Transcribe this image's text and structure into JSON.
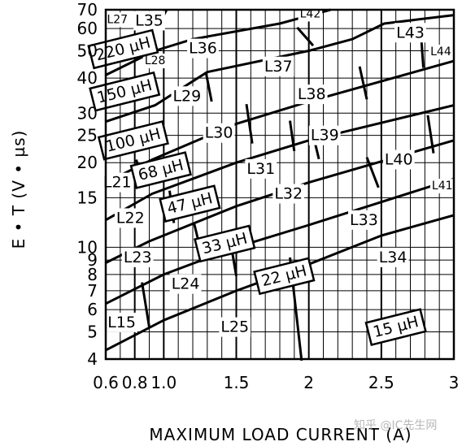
{
  "chart_data": {
    "type": "region-map",
    "xlabel": "MAXIMUM LOAD CURRENT (A)",
    "ylabel": "E • T (V • µs)",
    "x_scale": "linear",
    "y_scale": "log",
    "xlim": [
      0.6,
      3
    ],
    "ylim": [
      4,
      70
    ],
    "grid": true,
    "x_ticks": [
      {
        "value": 0.6,
        "label": "0.6"
      },
      {
        "value": 0.8,
        "label": "0.8"
      },
      {
        "value": 1.0,
        "label": "1.0"
      },
      {
        "value": 1.5,
        "label": "1.5"
      },
      {
        "value": 2.0,
        "label": "2"
      },
      {
        "value": 2.5,
        "label": "2.5"
      },
      {
        "value": 3.0,
        "label": "3"
      }
    ],
    "x_minor_grid": [
      0.7,
      0.9,
      1.1,
      1.2,
      1.3,
      1.4,
      1.6,
      1.7,
      1.8,
      1.9,
      2.1,
      2.2,
      2.3,
      2.4,
      2.6,
      2.7,
      2.8,
      2.9
    ],
    "y_ticks": [
      {
        "value": 4,
        "label": "4"
      },
      {
        "value": 5,
        "label": "5"
      },
      {
        "value": 6,
        "label": "6"
      },
      {
        "value": 7,
        "label": "7"
      },
      {
        "value": 8,
        "label": "8"
      },
      {
        "value": 9,
        "label": "9"
      },
      {
        "value": 10,
        "label": "10"
      },
      {
        "value": 15,
        "label": "15"
      },
      {
        "value": 20,
        "label": "20"
      },
      {
        "value": 25,
        "label": "25"
      },
      {
        "value": 30,
        "label": "30"
      },
      {
        "value": 40,
        "label": "40"
      },
      {
        "value": 50,
        "label": "50"
      },
      {
        "value": 60,
        "label": "60"
      },
      {
        "value": 70,
        "label": "70"
      }
    ],
    "inductance_boundaries": [
      {
        "label": "220 µH",
        "points": [
          [
            0.6,
            41
          ],
          [
            0.94,
            50
          ],
          [
            1.2,
            55
          ],
          [
            1.8,
            62.5
          ],
          [
            2.15,
            70
          ]
        ]
      },
      {
        "label": "150 µH",
        "points": [
          [
            0.6,
            28
          ],
          [
            0.94,
            32
          ],
          [
            1.3,
            42
          ],
          [
            2.0,
            50
          ],
          [
            2.3,
            55
          ],
          [
            2.52,
            62.5
          ],
          [
            3.0,
            67
          ]
        ]
      },
      {
        "label": "100 µH",
        "points": [
          [
            0.6,
            17
          ],
          [
            0.92,
            20.5
          ],
          [
            1.5,
            27.5
          ],
          [
            2.0,
            33
          ],
          [
            3.0,
            46
          ]
        ]
      },
      {
        "label": "68 µH",
        "points": [
          [
            0.6,
            12.5
          ],
          [
            0.92,
            15.5
          ],
          [
            1.5,
            20
          ],
          [
            2.0,
            24
          ],
          [
            3.0,
            32
          ]
        ]
      },
      {
        "label": "47 µH",
        "points": [
          [
            0.6,
            8.8
          ],
          [
            0.9,
            10.5
          ],
          [
            1.5,
            14
          ],
          [
            2.0,
            17
          ],
          [
            3.0,
            24
          ]
        ]
      },
      {
        "label": "33 µH",
        "points": [
          [
            0.6,
            6.3
          ],
          [
            1.0,
            8
          ],
          [
            1.5,
            10
          ],
          [
            2.0,
            12
          ],
          [
            3.0,
            17.5
          ]
        ]
      },
      {
        "label": "22 µH",
        "points": [
          [
            0.6,
            4.3
          ],
          [
            1.0,
            5.5
          ],
          [
            1.5,
            7
          ],
          [
            2.0,
            8.7
          ],
          [
            2.5,
            11
          ],
          [
            3.0,
            13
          ]
        ]
      }
    ],
    "current_boundaries": [
      {
        "points": [
          [
            0.95,
            60
          ],
          [
            1.02,
            70
          ]
        ]
      },
      {
        "points": [
          [
            1.29,
            42
          ],
          [
            1.33,
            33
          ]
        ]
      },
      {
        "points": [
          [
            1.57,
            32.3
          ],
          [
            1.61,
            23.4
          ]
        ]
      },
      {
        "points": [
          [
            1.92,
            60.5
          ],
          [
            2.03,
            52.2
          ]
        ]
      },
      {
        "points": [
          [
            2.02,
            26.3
          ],
          [
            2.07,
            20.6
          ]
        ]
      },
      {
        "points": [
          [
            2.35,
            44
          ],
          [
            2.4,
            33.6
          ]
        ]
      },
      {
        "points": [
          [
            2.77,
            60.3
          ],
          [
            2.79,
            43.5
          ]
        ]
      },
      {
        "points": [
          [
            2.4,
            20.9
          ],
          [
            2.48,
            16.3
          ]
        ]
      },
      {
        "points": [
          [
            2.82,
            29.5
          ],
          [
            2.86,
            21.6
          ]
        ]
      },
      {
        "points": [
          [
            1.45,
            11.2
          ],
          [
            1.5,
            7.9
          ]
        ]
      },
      {
        "points": [
          [
            0.81,
            20.5
          ],
          [
            0.86,
            16.6
          ]
        ]
      },
      {
        "points": [
          [
            1.04,
            15.9
          ],
          [
            1.07,
            12.2
          ]
        ]
      },
      {
        "points": [
          [
            1.21,
            12.1
          ],
          [
            1.26,
            9.5
          ]
        ]
      },
      {
        "points": [
          [
            0.85,
            7.5
          ],
          [
            0.9,
            5.2
          ]
        ]
      },
      {
        "points": [
          [
            1.87,
            9.2
          ],
          [
            1.95,
            3.95
          ]
        ]
      },
      {
        "points": [
          [
            1.87,
            28.2
          ],
          [
            1.9,
            22
          ]
        ]
      }
    ],
    "region_labels": [
      {
        "text": "L27",
        "x": 0.68,
        "y": 64.5,
        "small": true
      },
      {
        "text": "L35",
        "x": 0.9,
        "y": 64,
        "small": false
      },
      {
        "text": "L42",
        "x": 2.01,
        "y": 67.5,
        "small": true
      },
      {
        "text": "L43",
        "x": 2.7,
        "y": 58,
        "small": false
      },
      {
        "text": "L36",
        "x": 1.27,
        "y": 51,
        "small": false
      },
      {
        "text": "L28",
        "x": 0.94,
        "y": 46,
        "small": true
      },
      {
        "text": "L44",
        "x": 2.91,
        "y": 49.5,
        "small": true
      },
      {
        "text": "L37",
        "x": 1.79,
        "y": 44,
        "small": false
      },
      {
        "text": "L29",
        "x": 1.16,
        "y": 34.5,
        "small": false
      },
      {
        "text": "L38",
        "x": 2.02,
        "y": 35,
        "small": false
      },
      {
        "text": "L30",
        "x": 1.38,
        "y": 25.5,
        "small": false
      },
      {
        "text": "L39",
        "x": 2.11,
        "y": 25,
        "small": false
      },
      {
        "text": "L40",
        "x": 2.62,
        "y": 20.5,
        "small": false
      },
      {
        "text": "L31",
        "x": 1.67,
        "y": 19,
        "small": false
      },
      {
        "text": "L21",
        "x": 0.68,
        "y": 17,
        "small": false
      },
      {
        "text": "L41",
        "x": 2.92,
        "y": 16.5,
        "small": true
      },
      {
        "text": "L32",
        "x": 1.86,
        "y": 15.5,
        "small": false
      },
      {
        "text": "L22",
        "x": 0.77,
        "y": 12.7,
        "small": false
      },
      {
        "text": "L33",
        "x": 2.38,
        "y": 12.5,
        "small": false
      },
      {
        "text": "L23",
        "x": 0.82,
        "y": 9.2,
        "small": false
      },
      {
        "text": "L34",
        "x": 2.58,
        "y": 9.2,
        "small": false
      },
      {
        "text": "L24",
        "x": 1.15,
        "y": 7.4,
        "small": false
      },
      {
        "text": "L15",
        "x": 0.71,
        "y": 5.4,
        "small": false
      },
      {
        "text": "L25",
        "x": 1.49,
        "y": 5.2,
        "small": false
      }
    ],
    "inductance_labels": [
      {
        "text": "220 µH",
        "x": 0.72,
        "y": 50.7
      },
      {
        "text": "150 µH",
        "x": 0.73,
        "y": 35.8
      },
      {
        "text": "100 µH",
        "x": 0.79,
        "y": 24
      },
      {
        "text": "68 µH",
        "x": 0.98,
        "y": 18.8
      },
      {
        "text": "47 µH",
        "x": 1.18,
        "y": 14.3
      },
      {
        "text": "33 µH",
        "x": 1.42,
        "y": 10.3
      },
      {
        "text": "22 µH",
        "x": 1.83,
        "y": 7.9
      },
      {
        "text": "15 µH",
        "x": 2.6,
        "y": 5.2
      }
    ]
  },
  "watermark": "知乎 @IC先生网"
}
